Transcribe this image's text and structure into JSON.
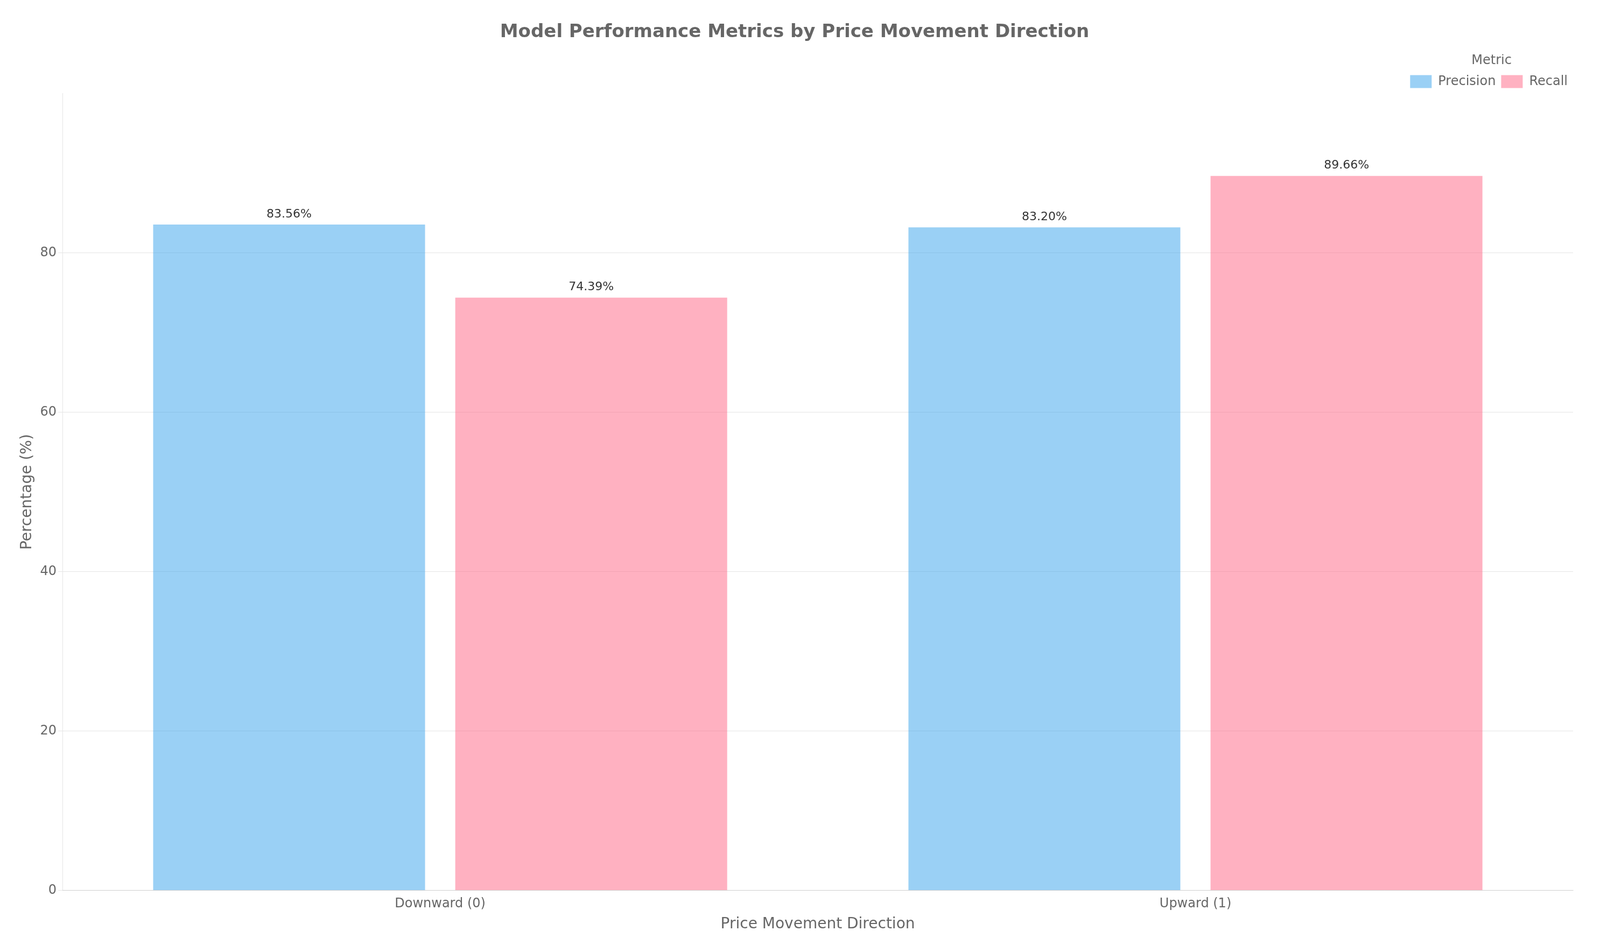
{
  "chart_data": {
    "type": "bar",
    "title": "Model Performance Metrics by Price Movement Direction",
    "xlabel": "Price Movement Direction",
    "ylabel": "Percentage (%)",
    "categories": [
      "Downward (0)",
      "Upward (1)"
    ],
    "series": [
      {
        "name": "Precision",
        "values": [
          83.56,
          83.2
        ],
        "value_labels": [
          "83.56%",
          "83.20%"
        ]
      },
      {
        "name": "Recall",
        "values": [
          74.39,
          89.66
        ],
        "value_labels": [
          "74.39%",
          "89.66%"
        ]
      }
    ],
    "ylim": [
      0,
      100
    ],
    "yticks": [
      0,
      20,
      40,
      60,
      80
    ],
    "grid": true,
    "legend": "upper right",
    "legend_title": "Metric",
    "data_labels": true
  }
}
